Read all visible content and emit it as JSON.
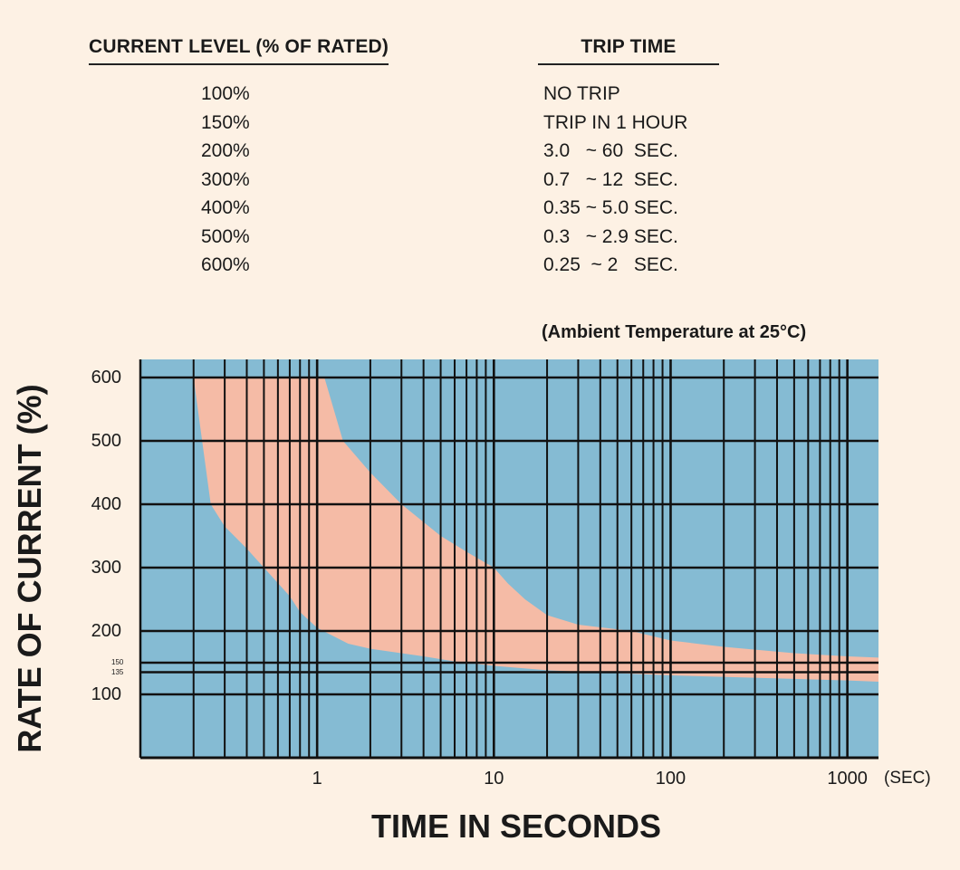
{
  "table": {
    "header_level": "CURRENT LEVEL (% OF RATED)",
    "header_trip": "TRIP TIME",
    "rows": [
      {
        "level": "100%",
        "trip": "NO TRIP"
      },
      {
        "level": "150%",
        "trip": "TRIP IN 1 HOUR"
      },
      {
        "level": "200%",
        "trip": "3.0   ~ 60  SEC."
      },
      {
        "level": "300%",
        "trip": "0.7   ~ 12  SEC."
      },
      {
        "level": "400%",
        "trip": "0.35 ~ 5.0 SEC."
      },
      {
        "level": "500%",
        "trip": "0.3   ~ 2.9 SEC."
      },
      {
        "level": "600%",
        "trip": "0.25  ~ 2   SEC."
      }
    ]
  },
  "chart_data": {
    "type": "area",
    "note": "(Ambient Temperature at 25°C)",
    "xlabel": "TIME IN SECONDS",
    "ylabel": "RATE OF CURRENT (%)",
    "x_unit": "(SEC)",
    "x_scale": "log",
    "xlim": [
      0.1,
      1500
    ],
    "ylim": [
      0,
      600
    ],
    "x_ticks": [
      "1",
      "10",
      "100",
      "1000"
    ],
    "y_ticks": [
      "100",
      "200",
      "300",
      "400",
      "500",
      "600"
    ],
    "y_small_ticks": [
      "150",
      "135"
    ],
    "reference_lines": [
      150,
      135
    ],
    "grid": true,
    "colors": {
      "background": "#fdf1e4",
      "plot": "#85bbd3",
      "band": "#f5bba6",
      "grid": "#111111"
    },
    "series": [
      {
        "role": "upper_bound",
        "x": [
          1.1,
          1.4,
          2,
          3,
          5,
          7,
          10,
          12,
          15,
          20,
          30,
          60,
          100,
          200,
          500,
          1000,
          1500
        ],
        "y": [
          600,
          500,
          450,
          400,
          350,
          325,
          300,
          275,
          250,
          225,
          210,
          200,
          185,
          175,
          165,
          160,
          158
        ]
      },
      {
        "role": "lower_bound",
        "x": [
          0.2,
          0.25,
          0.3,
          0.4,
          0.5,
          0.7,
          0.8,
          1.0,
          1.5,
          2,
          4,
          6,
          10,
          20,
          100,
          1000,
          1500
        ],
        "y": [
          600,
          400,
          365,
          330,
          300,
          255,
          230,
          205,
          180,
          172,
          160,
          152,
          145,
          138,
          130,
          122,
          120
        ]
      }
    ]
  }
}
